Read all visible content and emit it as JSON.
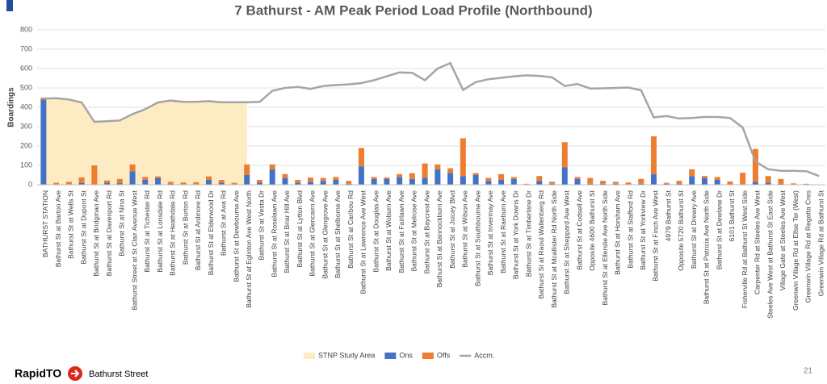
{
  "chart_data": {
    "type": "bar",
    "title": "7 Bathurst - AM Peak Period Load Profile (Northbound)",
    "y_label": "Boardings",
    "categories": [
      "BATHURST STATION",
      "Bathurst St at Barton Ave",
      "Bathurst St at Wells St",
      "Bathurst St at Dupont St",
      "Bathurst St at Bridgman Ave",
      "Bathurst St at Davenport Rd",
      "Bathurst St at Nina St",
      "Bathurst Street at St Clair Avenue West",
      "Bathurst St at Tichester Rd",
      "Bathurst St at Lonsdale Rd",
      "Bathurst St at Heathdale Rd",
      "Bathurst St at Burton Rd",
      "Bathurst St at Ardmore Rd",
      "Bathurst St at Elderwood Dr",
      "Bathurst St at Ava Rd",
      "Bathurst St at Dewbourne Ave",
      "Bathurst St at Eglinton Ave West North",
      "Bathurst St at Vesta Dr",
      "Bathurst St at Roselawn Ave",
      "Bathurst St at Briar Hill Ave",
      "Bathurst St at Lytton Blvd",
      "Bathurst St at Glencairn Ave",
      "Bathurst St at Glengrove Ave",
      "Bathurst St at Shelborne Ave",
      "Bathurst St at Caribou Rd",
      "Bathurst St at Lawrence Ave West",
      "Bathurst St at Douglas Ave",
      "Bathurst St at Woburn Ave",
      "Bathurst St at Fairlawn Ave",
      "Bathurst St at Melrose Ave",
      "Bathurst St at Baycrest Ave",
      "Bathurst St at Bannockburn Ave",
      "Bathurst St at Joicey Blvd",
      "Bathurst St at Wilson Ave",
      "Bathurst St at Southbourne Ave",
      "Bathurst St at Invermay Ave",
      "Bathurst St at Raeburn Ave",
      "Bathurst St at York Downs Dr",
      "Bathurst St at Timberlane Dr",
      "Bathurst St at Raoul Wallenberg Rd",
      "Bathurst St at Mcallister Rd North Side",
      "Bathurst St at Sheppard Ave West",
      "Bathurst St at Codsell Ave",
      "Opposite 4600 Bathurst St",
      "Bathurst St at Ellerslie Ave North Side",
      "Bathurst St at Horsham Ave",
      "Bathurst St at Stafford Rd",
      "Bathurst St at Yorkview Dr",
      "Bathurst St at Finch Ave West",
      "4979 Bathurst St",
      "Opposite 5720 Bathurst St",
      "Bathurst St at Drewry Ave",
      "Bathurst St at Patricia Ave North Side",
      "Bathurst St at Dewlane Dr",
      "6101 Bathurst St",
      "Fisherville Rd at Bathurst St West Side",
      "Carpenter Rd at Steeles Ave West",
      "Steeles Ave West at Bathurst St East Side",
      "Village Gate at Steeles Ave West",
      "Greenwin Village Rd at Ellse Ter (West)",
      "Greenwin Village Rd at Regatta Cres",
      "Greenwin Village Rd at Bathurst St"
    ],
    "series": [
      {
        "name": "STNP Study Area",
        "kind": "area",
        "color": "#fdebc4",
        "values": [
          445,
          447,
          440,
          425,
          325,
          328,
          332,
          365,
          390,
          425,
          435,
          428,
          428,
          432,
          426,
          426,
          426,
          null,
          null,
          null,
          null,
          null,
          null,
          null,
          null,
          null,
          null,
          null,
          null,
          null,
          null,
          null,
          null,
          null,
          null,
          null,
          null,
          null,
          null,
          null,
          null,
          null,
          null,
          null,
          null,
          null,
          null,
          null,
          null,
          null,
          null,
          null,
          null,
          null,
          null,
          null,
          null,
          null,
          null,
          null,
          null,
          null
        ]
      },
      {
        "name": "Ons",
        "kind": "bar",
        "color": "#4472c4",
        "values": [
          440,
          2,
          3,
          10,
          0,
          10,
          8,
          70,
          25,
          35,
          5,
          2,
          3,
          25,
          10,
          2,
          50,
          10,
          80,
          35,
          10,
          15,
          20,
          25,
          5,
          95,
          30,
          30,
          40,
          30,
          35,
          80,
          60,
          45,
          50,
          20,
          25,
          30,
          2,
          20,
          5,
          90,
          30,
          5,
          5,
          5,
          2,
          5,
          55,
          5,
          5,
          45,
          35,
          25,
          2,
          2,
          15,
          10,
          5,
          2,
          0,
          0
        ]
      },
      {
        "name": "Offs",
        "kind": "bar",
        "color": "#ed7d31",
        "values": [
          10,
          8,
          12,
          28,
          100,
          12,
          22,
          35,
          15,
          8,
          10,
          10,
          10,
          18,
          15,
          8,
          55,
          15,
          25,
          20,
          15,
          22,
          15,
          15,
          15,
          95,
          10,
          8,
          15,
          30,
          75,
          25,
          25,
          195,
          10,
          15,
          30,
          10,
          3,
          25,
          10,
          130,
          10,
          30,
          15,
          10,
          10,
          25,
          195,
          5,
          15,
          35,
          10,
          15,
          15,
          60,
          170,
          35,
          25,
          5,
          5,
          0
        ]
      },
      {
        "name": "Accm.",
        "kind": "line",
        "color": "#a5a5a5",
        "values": [
          445,
          447,
          440,
          425,
          325,
          328,
          332,
          365,
          390,
          425,
          435,
          428,
          428,
          432,
          426,
          426,
          426,
          428,
          485,
          500,
          505,
          495,
          510,
          515,
          518,
          525,
          540,
          560,
          580,
          578,
          540,
          600,
          628,
          490,
          530,
          545,
          552,
          560,
          565,
          562,
          555,
          510,
          520,
          497,
          498,
          500,
          502,
          488,
          348,
          355,
          342,
          345,
          350,
          350,
          345,
          295,
          120,
          80,
          72,
          72,
          70,
          45
        ]
      }
    ],
    "ylim": [
      0,
      800
    ],
    "yticks": [
      0,
      100,
      200,
      300,
      400,
      500,
      600,
      700,
      800
    ],
    "grid": true
  },
  "footer": {
    "brand": "RapidTO",
    "subtitle": "Bathurst Street",
    "page": "21"
  }
}
